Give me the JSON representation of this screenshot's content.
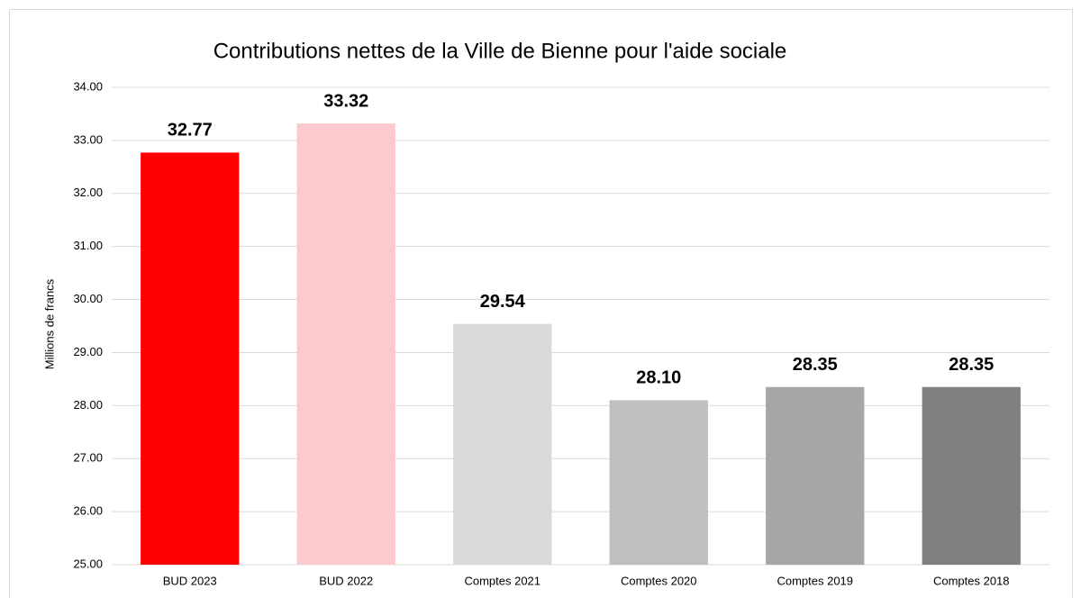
{
  "chart_data": {
    "type": "bar",
    "title": "Contributions nettes de la Ville de Bienne pour l'aide sociale",
    "y_label": "Millions de francs",
    "categories": [
      "BUD 2023",
      "BUD 2022",
      "Comptes 2021",
      "Comptes 2020",
      "Comptes 2019",
      "Comptes 2018"
    ],
    "values": [
      32.77,
      33.32,
      29.54,
      28.1,
      28.35,
      28.35
    ],
    "value_labels": [
      "32.77",
      "33.32",
      "29.54",
      "28.10",
      "28.35",
      "28.35"
    ],
    "colors": [
      "#ff0000",
      "#fccacd",
      "#d9d9d9",
      "#bfbfbf",
      "#a6a6a6",
      "#808080"
    ],
    "ylim": [
      25,
      34
    ],
    "yticks": [
      {
        "value": 25,
        "label": "25.00"
      },
      {
        "value": 26,
        "label": "26.00"
      },
      {
        "value": 27,
        "label": "27.00"
      },
      {
        "value": 28,
        "label": "28.00"
      },
      {
        "value": 29,
        "label": "29.00"
      },
      {
        "value": 30,
        "label": "30.00"
      },
      {
        "value": 31,
        "label": "31.00"
      },
      {
        "value": 32,
        "label": "32.00"
      },
      {
        "value": 33,
        "label": "33.00"
      },
      {
        "value": 34,
        "label": "34.00"
      }
    ],
    "grid": true
  }
}
